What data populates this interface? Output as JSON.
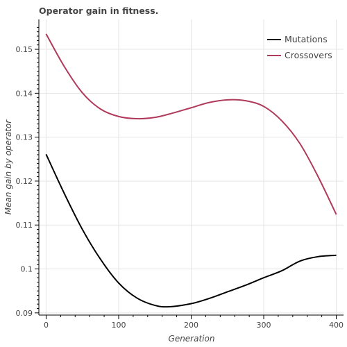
{
  "chart_data": {
    "type": "line",
    "title": "Operator gain in fitness.",
    "xlabel": "Generation",
    "ylabel": "Mean gain by operator",
    "xlim": [
      -10,
      410
    ],
    "ylim": [
      0.0895,
      0.1568
    ],
    "x_ticks": [
      0,
      100,
      200,
      300,
      400
    ],
    "x_tick_labels": [
      "0",
      "100",
      "200",
      "300",
      "400"
    ],
    "y_ticks": [
      0.09,
      0.1,
      0.11,
      0.12,
      0.13,
      0.14,
      0.15
    ],
    "y_tick_labels": [
      "0.09",
      "0.1",
      "0.11",
      "0.12",
      "0.13",
      "0.14",
      "0.15"
    ],
    "grid": true,
    "legend_position": "top-right",
    "series": [
      {
        "name": "Mutations",
        "color": "#000000",
        "x": [
          0,
          25,
          50,
          75,
          100,
          125,
          150,
          170,
          200,
          225,
          250,
          275,
          300,
          325,
          350,
          375,
          400
        ],
        "y": [
          0.1261,
          0.1172,
          0.109,
          0.1022,
          0.0968,
          0.0934,
          0.0917,
          0.0914,
          0.0921,
          0.0933,
          0.0948,
          0.0963,
          0.098,
          0.0996,
          0.1018,
          0.1028,
          0.1031
        ]
      },
      {
        "name": "Crossovers",
        "color": "#b03a5b",
        "x": [
          0,
          25,
          50,
          75,
          100,
          125,
          150,
          175,
          200,
          225,
          250,
          275,
          300,
          325,
          350,
          375,
          400
        ],
        "y": [
          0.1535,
          0.1461,
          0.1401,
          0.1364,
          0.1347,
          0.1342,
          0.1345,
          0.1355,
          0.1367,
          0.1379,
          0.1385,
          0.1383,
          0.137,
          0.1337,
          0.1285,
          0.121,
          0.1124
        ]
      }
    ]
  }
}
